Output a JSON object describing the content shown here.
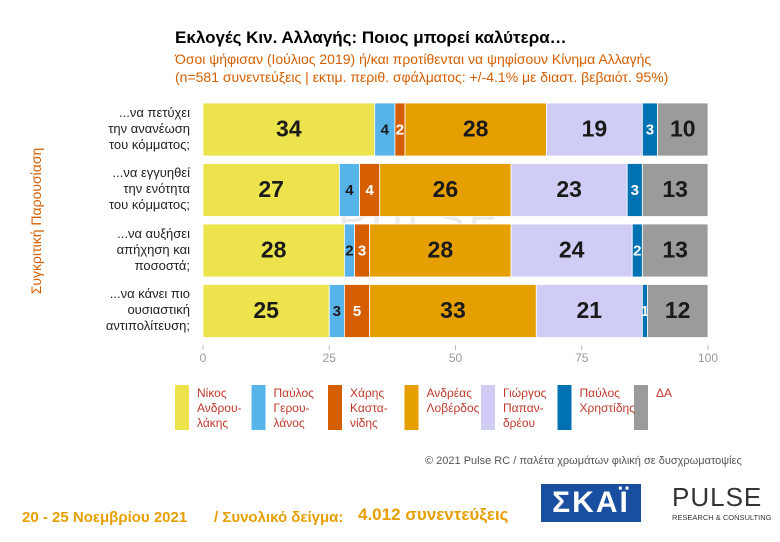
{
  "chart_data": {
    "type": "stacked_bar_horizontal",
    "title": "Εκλογές Κιν. Αλλαγής: Ποιος μπορεί καλύτερα…",
    "subtitle": [
      "Όσοι ψήφισαν (Ιούλιος 2019) ή/και προτίθενται να ψηφίσουν Κίνημα Αλλαγής",
      "(n=581 συνεντεύξεις | εκτιμ. περιθ. σφάλματος: +/-4.1% με διαστ. βεβαιότ. 95%)"
    ],
    "y_label": "Συγκριτική Παρουσίαση",
    "categories": [
      "...να πετύχει\nτην ανανέωση\nτου κόμματος;",
      "...να εγγυηθεί\nτην ενότητα\nτου κόμματος;",
      "...να αυξήσει\nαπήχηση και\nποσοστά;",
      "...να κάνει πιο\nουσιαστική\nαντιπολίτευση;"
    ],
    "series": [
      {
        "name": "Νίκος\nΑνδρου-\nλάκης",
        "color": "#ede34c",
        "values": [
          34,
          27,
          28,
          25
        ]
      },
      {
        "name": "Παύλος\nΓερου-\nλάνος",
        "color": "#56b4e9",
        "values": [
          4,
          4,
          2,
          3
        ]
      },
      {
        "name": "Χάρης\nΚαστα-\nνίδης",
        "color": "#d55e00",
        "values": [
          2,
          4,
          3,
          5
        ]
      },
      {
        "name": "Ανδρέας\nΛοβέρδος",
        "color": "#e69f00",
        "values": [
          28,
          26,
          28,
          33
        ]
      },
      {
        "name": "Γιώργος\nΠαπαν-\nδρέου",
        "color": "#cfcdf5",
        "values": [
          19,
          23,
          24,
          21
        ]
      },
      {
        "name": "Παύλος\nΧρηστίδης",
        "color": "#0072b2",
        "values": [
          3,
          3,
          2,
          1
        ]
      },
      {
        "name": "ΔΑ",
        "color": "#9b9b9b",
        "values": [
          10,
          13,
          13,
          12
        ]
      }
    ],
    "xlim": [
      0,
      100
    ],
    "xticks": [
      0,
      25,
      50,
      75,
      100
    ],
    "credit": "© 2021 Pulse RC  /  παλέτα χρωμάτων φιλική σε δυσχρωματοψίες",
    "footer": {
      "dates": "20 - 25  Νοεμβρίου 2021",
      "sample_label": "/  Συνολικό δείγμα:",
      "sample": "4.012 συνεντεύξεις"
    },
    "logos": {
      "skai": "ΣΚΑΪ",
      "pulse": "PULSE",
      "pulse_sub": "RESEARCH & CONSULTING"
    }
  }
}
